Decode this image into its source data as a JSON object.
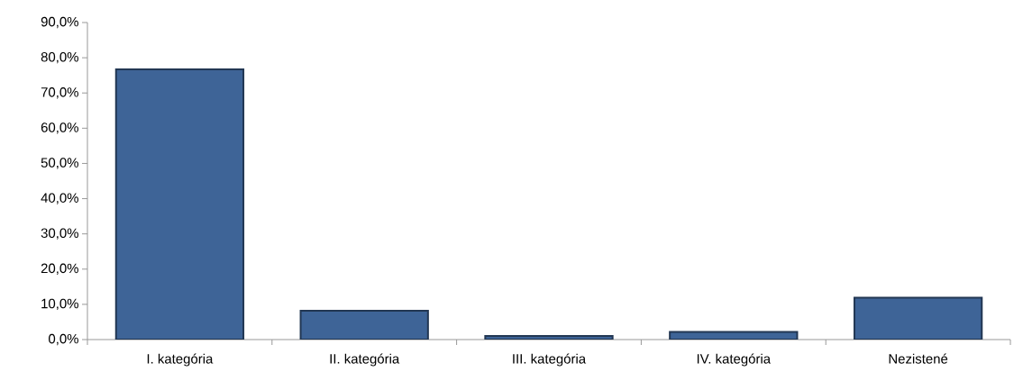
{
  "chart_data": {
    "type": "bar",
    "categories": [
      "I. kategória",
      "II. kategória",
      "III. kategória",
      "IV. kategória",
      "Nezistené"
    ],
    "values": [
      76.7,
      8.2,
      1.0,
      2.2,
      11.9
    ],
    "color": "#3e6497",
    "ylim": [
      0,
      90
    ],
    "yticks": [
      {
        "value": 0,
        "label": "0,0%"
      },
      {
        "value": 10,
        "label": "10,0%"
      },
      {
        "value": 20,
        "label": "20,0%"
      },
      {
        "value": 30,
        "label": "30,0%"
      },
      {
        "value": 40,
        "label": "40,0%"
      },
      {
        "value": 50,
        "label": "50,0%"
      },
      {
        "value": 60,
        "label": "60,0%"
      },
      {
        "value": 70,
        "label": "70,0%"
      },
      {
        "value": 80,
        "label": "80,0%"
      },
      {
        "value": 90,
        "label": "90,0%"
      }
    ]
  }
}
